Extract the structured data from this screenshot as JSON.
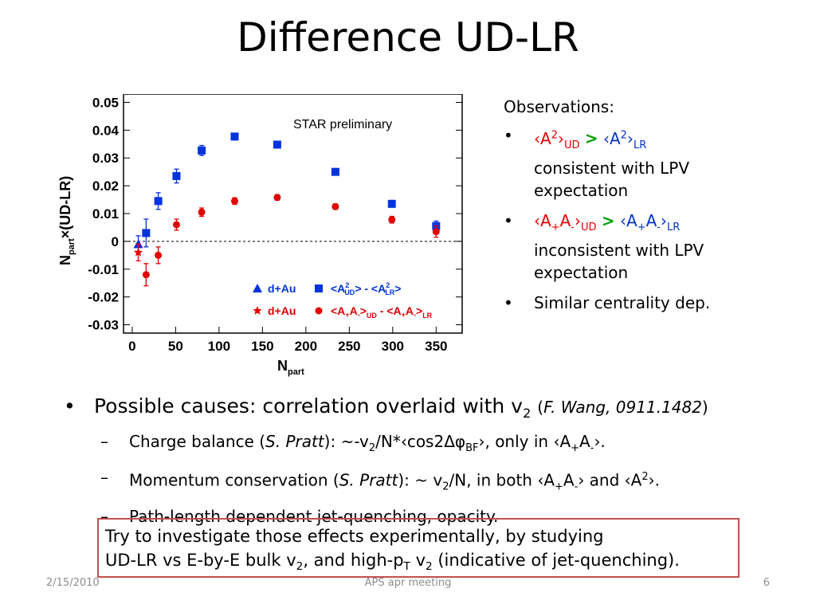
{
  "slide": {
    "title": "Difference UD-LR",
    "observations": {
      "heading": "Observations:",
      "item1_line2": "consistent with LPV",
      "item1_line3": "expectation",
      "item2_line2": "inconsistent with LPV",
      "item2_line3": "expectation",
      "item3": "Similar centrality dep."
    },
    "bullets": {
      "main": "Possible causes: correlation overlaid with v",
      "main_ref": "F. Wang, 0911.1482",
      "sub1_prefix": "Charge balance (",
      "sub1_author": "S. Pratt",
      "sub1_suffix_a": "): ~-v",
      "sub1_suffix_b": "/N*‹cos2",
      "sub1_suffix_c": "›, only in ‹A",
      "sub2_prefix": "Momentum conservation (",
      "sub2_author": "S. Pratt",
      "sub2_suffix_a": "): ~ v",
      "sub2_suffix_b": "/N, in both ‹A",
      "sub3": "Path-length dependent jet-quenching, opacity."
    },
    "box": {
      "line1": "Try to investigate those effects experimentally, by studying",
      "line2_a": "UD-LR vs E-by-E bulk v",
      "line2_b": ", and high-p",
      "line2_c": " v",
      "line2_d": " (indicative of jet-quenching)."
    },
    "footer": {
      "date": "2/15/2010",
      "center": "APS apr meeting",
      "page": "6"
    }
  },
  "chart_data": {
    "type": "scatter",
    "title": "STAR preliminary",
    "xlabel": "N_part",
    "ylabel": "N_part×(UD-LR)",
    "xlim": [
      -10,
      380
    ],
    "ylim": [
      -0.033,
      0.053
    ],
    "xticks": [
      0,
      50,
      100,
      150,
      200,
      250,
      300,
      350
    ],
    "yticks": [
      -0.03,
      -0.02,
      -0.01,
      0,
      0.01,
      0.02,
      0.03,
      0.04,
      0.05
    ],
    "colors": {
      "blue": "#0033dd",
      "red": "#e00000"
    },
    "series": [
      {
        "name": "d+Au",
        "group": "blue",
        "marker": "triangle",
        "x": [
          7
        ],
        "y": [
          -0.001
        ],
        "err": [
          0.003
        ]
      },
      {
        "name": "<A²UD> - <A²LR>",
        "group": "blue",
        "marker": "square",
        "x": [
          16,
          30,
          51,
          80,
          118,
          167,
          234,
          299,
          350
        ],
        "y": [
          0.003,
          0.0145,
          0.0235,
          0.0327,
          0.0377,
          0.0348,
          0.025,
          0.0135,
          0.0055
        ],
        "err": [
          0.005,
          0.003,
          0.0025,
          0.0018,
          0.0012,
          0.001,
          0.001,
          0.0012,
          0.0018
        ]
      },
      {
        "name": "d+Au",
        "group": "red",
        "marker": "star",
        "x": [
          7
        ],
        "y": [
          -0.004
        ],
        "err": [
          0.003
        ]
      },
      {
        "name": "<A+A->UD - <A+A->LR",
        "group": "red",
        "marker": "circle",
        "x": [
          16,
          30,
          51,
          80,
          118,
          167,
          234,
          299,
          350
        ],
        "y": [
          -0.012,
          -0.005,
          0.006,
          0.0105,
          0.0145,
          0.0158,
          0.0125,
          0.0078,
          0.0035
        ],
        "err": [
          0.004,
          0.003,
          0.002,
          0.0015,
          0.0012,
          0.001,
          0.001,
          0.0012,
          0.002
        ]
      }
    ],
    "legend": [
      {
        "label": "d+Au",
        "marker": "triangle",
        "color": "#0033dd"
      },
      {
        "label": "<A²UD> - <A²LR>",
        "marker": "square",
        "color": "#0033dd"
      },
      {
        "label": "d+Au",
        "marker": "star",
        "color": "#e00000"
      },
      {
        "label": "<A+A->UD - <A+A->LR",
        "marker": "circle",
        "color": "#e00000"
      }
    ],
    "legend_position": "bottom-right",
    "zero_line": "dashed"
  }
}
